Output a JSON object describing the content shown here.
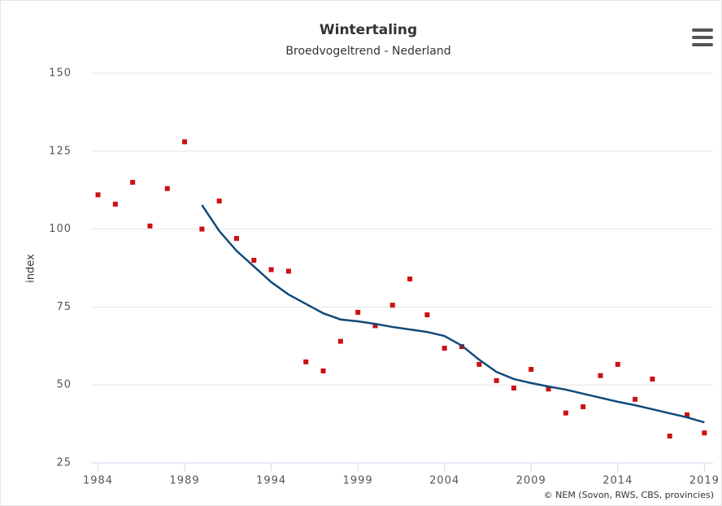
{
  "chart_data": {
    "type": "scatter",
    "title": "Wintertaling",
    "subtitle": "Broedvogeltrend - Nederland",
    "y_label": "index",
    "credit": "© NEM (Sovon, RWS, CBS, provincies)",
    "x": [
      1984,
      1985,
      1986,
      1987,
      1988,
      1989,
      1990,
      1991,
      1992,
      1993,
      1994,
      1995,
      1996,
      1997,
      1998,
      1999,
      2000,
      2001,
      2002,
      2003,
      2004,
      2005,
      2006,
      2007,
      2008,
      2009,
      2010,
      2011,
      2012,
      2013,
      2014,
      2015,
      2016,
      2017,
      2018,
      2019
    ],
    "series": [
      {
        "type": "scatter",
        "color": "#cc1111",
        "values": [
          111,
          108,
          115,
          101,
          113,
          128,
          100,
          109,
          97,
          90,
          87,
          86.5,
          57.4,
          54.5,
          64,
          73.3,
          69,
          75.6,
          84,
          72.5,
          61.8,
          62.3,
          56.6,
          51.4,
          49,
          55,
          48.7,
          41,
          43,
          53,
          56.6,
          45.4,
          51.9,
          33.6,
          40.4,
          34.6
        ]
      },
      {
        "type": "line",
        "color": "#104a7a",
        "values": [
          null,
          null,
          null,
          null,
          null,
          null,
          107.7,
          99.4,
          93,
          88,
          83,
          79,
          76,
          73,
          71,
          70.4,
          69.6,
          68.6,
          67.8,
          67,
          65.7,
          62.6,
          58.1,
          54.2,
          51.9,
          50.6,
          49.5,
          48.5,
          47.2,
          45.9,
          44.6,
          43.5,
          42.2,
          40.9,
          39.6,
          38
        ]
      }
    ],
    "xlim": [
      1983.6,
      2019.5
    ],
    "ylim": [
      25,
      150
    ],
    "xticks": [
      1984,
      1989,
      1994,
      1999,
      2004,
      2009,
      2014,
      2019
    ],
    "yticks": [
      25,
      50,
      75,
      100,
      125,
      150
    ],
    "grid": true
  }
}
